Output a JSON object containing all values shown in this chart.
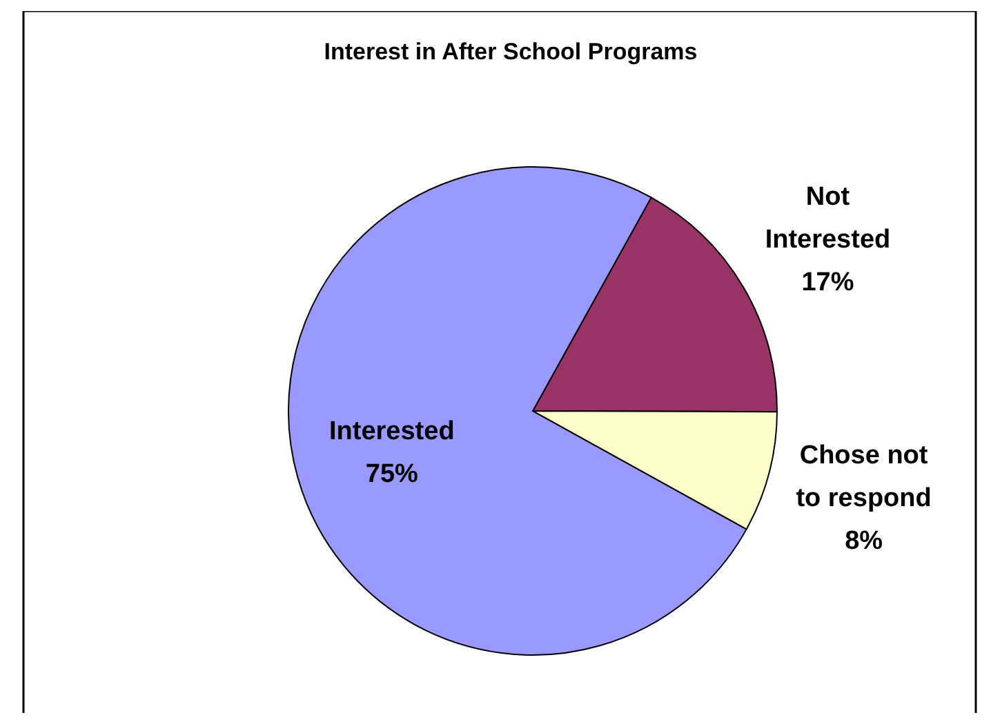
{
  "chart_data": {
    "type": "pie",
    "title": "Interest in After School Programs",
    "categories": [
      "Not Interested",
      "Chose not to respond",
      "Interested"
    ],
    "values": [
      17,
      8,
      75
    ],
    "colors": [
      "#993366",
      "#ffffcc",
      "#9999ff"
    ],
    "value_labels": [
      "17%",
      "8%",
      "75%"
    ]
  }
}
